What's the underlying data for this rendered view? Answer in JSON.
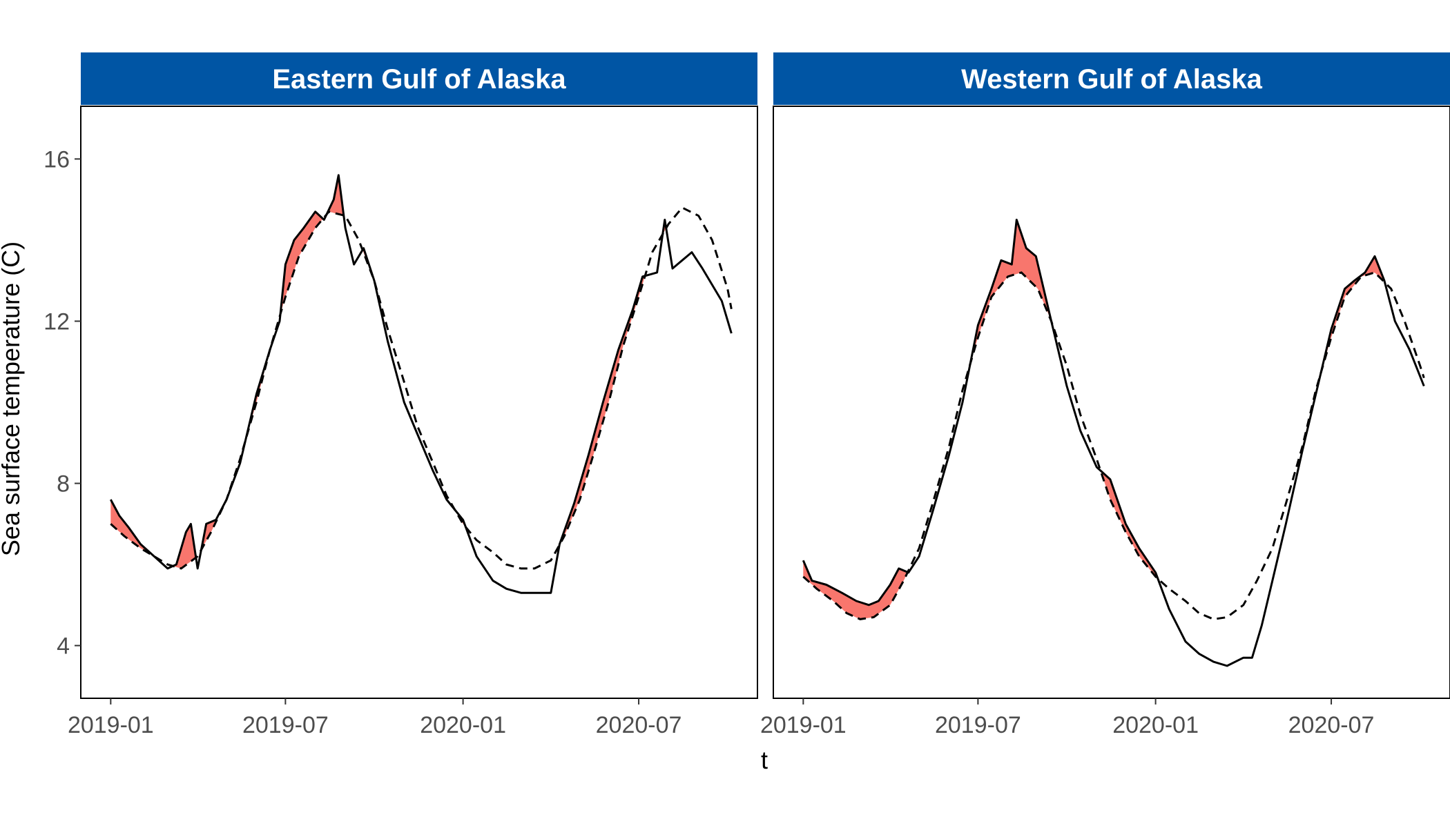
{
  "chart_data": [
    {
      "type": "line",
      "panel_title": "Eastern Gulf of Alaska",
      "xlabel": "t",
      "ylabel": "Sea surface temperature (C)",
      "xlim": [
        "2018-12-01",
        "2020-11-01"
      ],
      "ylim": [
        2.7,
        17.3
      ],
      "x_ticks": [
        "2019-01",
        "2019-07",
        "2020-01",
        "2020-07"
      ],
      "y_ticks": [
        4,
        8,
        12,
        16
      ],
      "fill": "positive anomaly shaded",
      "series": [
        {
          "role": "observed",
          "style": "solid",
          "points": [
            [
              "2019-01-01",
              7.6
            ],
            [
              "2019-01-10",
              7.2
            ],
            [
              "2019-01-20",
              6.9
            ],
            [
              "2019-02-01",
              6.5
            ],
            [
              "2019-02-15",
              6.2
            ],
            [
              "2019-03-01",
              5.9
            ],
            [
              "2019-03-10",
              6.0
            ],
            [
              "2019-03-20",
              6.8
            ],
            [
              "2019-03-25",
              7.0
            ],
            [
              "2019-04-01",
              5.9
            ],
            [
              "2019-04-10",
              7.0
            ],
            [
              "2019-04-20",
              7.1
            ],
            [
              "2019-05-01",
              7.6
            ],
            [
              "2019-05-15",
              8.5
            ],
            [
              "2019-06-01",
              10.2
            ],
            [
              "2019-06-15",
              11.3
            ],
            [
              "2019-06-25",
              12.0
            ],
            [
              "2019-07-01",
              13.4
            ],
            [
              "2019-07-10",
              14.0
            ],
            [
              "2019-07-20",
              14.3
            ],
            [
              "2019-08-01",
              14.7
            ],
            [
              "2019-08-10",
              14.5
            ],
            [
              "2019-08-20",
              15.0
            ],
            [
              "2019-08-25",
              15.6
            ],
            [
              "2019-09-01",
              14.3
            ],
            [
              "2019-09-10",
              13.4
            ],
            [
              "2019-09-20",
              13.8
            ],
            [
              "2019-10-01",
              13.0
            ],
            [
              "2019-10-15",
              11.5
            ],
            [
              "2019-11-01",
              10.0
            ],
            [
              "2019-11-15",
              9.2
            ],
            [
              "2019-12-01",
              8.3
            ],
            [
              "2019-12-15",
              7.6
            ],
            [
              "2020-01-01",
              7.1
            ],
            [
              "2020-01-15",
              6.2
            ],
            [
              "2020-02-01",
              5.6
            ],
            [
              "2020-02-15",
              5.4
            ],
            [
              "2020-03-01",
              5.3
            ],
            [
              "2020-03-15",
              5.3
            ],
            [
              "2020-04-01",
              5.3
            ],
            [
              "2020-04-10",
              6.5
            ],
            [
              "2020-04-25",
              7.5
            ],
            [
              "2020-05-10",
              8.7
            ],
            [
              "2020-05-25",
              10.0
            ],
            [
              "2020-06-10",
              11.3
            ],
            [
              "2020-06-25",
              12.3
            ],
            [
              "2020-07-05",
              13.1
            ],
            [
              "2020-07-20",
              13.2
            ],
            [
              "2020-07-28",
              14.5
            ],
            [
              "2020-08-05",
              13.3
            ],
            [
              "2020-08-15",
              13.5
            ],
            [
              "2020-08-25",
              13.7
            ],
            [
              "2020-09-05",
              13.3
            ],
            [
              "2020-09-15",
              12.9
            ],
            [
              "2020-09-25",
              12.5
            ],
            [
              "2020-10-05",
              11.7
            ]
          ]
        },
        {
          "role": "climatology",
          "style": "dashed",
          "points": [
            [
              "2019-01-01",
              7.0
            ],
            [
              "2019-01-15",
              6.7
            ],
            [
              "2019-02-01",
              6.4
            ],
            [
              "2019-02-15",
              6.2
            ],
            [
              "2019-03-01",
              6.0
            ],
            [
              "2019-03-15",
              5.9
            ],
            [
              "2019-04-01",
              6.2
            ],
            [
              "2019-04-15",
              6.8
            ],
            [
              "2019-05-01",
              7.6
            ],
            [
              "2019-05-15",
              8.6
            ],
            [
              "2019-06-01",
              10.0
            ],
            [
              "2019-06-15",
              11.3
            ],
            [
              "2019-07-01",
              12.6
            ],
            [
              "2019-07-15",
              13.6
            ],
            [
              "2019-08-01",
              14.3
            ],
            [
              "2019-08-15",
              14.7
            ],
            [
              "2019-09-01",
              14.6
            ],
            [
              "2019-09-15",
              14.0
            ],
            [
              "2019-10-01",
              13.0
            ],
            [
              "2019-10-15",
              11.8
            ],
            [
              "2019-11-01",
              10.5
            ],
            [
              "2019-11-15",
              9.4
            ],
            [
              "2019-12-01",
              8.5
            ],
            [
              "2019-12-15",
              7.7
            ],
            [
              "2020-01-01",
              7.0
            ],
            [
              "2020-01-15",
              6.6
            ],
            [
              "2020-02-01",
              6.3
            ],
            [
              "2020-02-15",
              6.0
            ],
            [
              "2020-03-01",
              5.9
            ],
            [
              "2020-03-15",
              5.9
            ],
            [
              "2020-04-01",
              6.1
            ],
            [
              "2020-04-15",
              6.7
            ],
            [
              "2020-05-01",
              7.6
            ],
            [
              "2020-05-15",
              8.7
            ],
            [
              "2020-06-01",
              10.1
            ],
            [
              "2020-06-15",
              11.4
            ],
            [
              "2020-07-01",
              12.6
            ],
            [
              "2020-07-15",
              13.7
            ],
            [
              "2020-08-01",
              14.4
            ],
            [
              "2020-08-15",
              14.8
            ],
            [
              "2020-09-01",
              14.6
            ],
            [
              "2020-09-15",
              14.0
            ],
            [
              "2020-10-01",
              12.8
            ],
            [
              "2020-10-05",
              12.3
            ]
          ]
        }
      ]
    },
    {
      "type": "line",
      "panel_title": "Western Gulf of Alaska",
      "xlabel": "t",
      "ylabel": "Sea surface temperature (C)",
      "xlim": [
        "2018-12-01",
        "2020-11-01"
      ],
      "ylim": [
        2.7,
        17.3
      ],
      "x_ticks": [
        "2019-01",
        "2019-07",
        "2020-01",
        "2020-07"
      ],
      "y_ticks": [
        4,
        8,
        12,
        16
      ],
      "fill": "positive anomaly shaded",
      "series": [
        {
          "role": "observed",
          "style": "solid",
          "points": [
            [
              "2019-01-01",
              6.1
            ],
            [
              "2019-01-10",
              5.6
            ],
            [
              "2019-01-25",
              5.5
            ],
            [
              "2019-02-10",
              5.3
            ],
            [
              "2019-02-25",
              5.1
            ],
            [
              "2019-03-10",
              5.0
            ],
            [
              "2019-03-20",
              5.1
            ],
            [
              "2019-04-01",
              5.5
            ],
            [
              "2019-04-10",
              5.9
            ],
            [
              "2019-04-20",
              5.8
            ],
            [
              "2019-05-01",
              6.2
            ],
            [
              "2019-05-15",
              7.3
            ],
            [
              "2019-06-01",
              8.7
            ],
            [
              "2019-06-15",
              10.0
            ],
            [
              "2019-07-01",
              11.9
            ],
            [
              "2019-07-15",
              12.8
            ],
            [
              "2019-07-25",
              13.5
            ],
            [
              "2019-08-05",
              13.4
            ],
            [
              "2019-08-10",
              14.5
            ],
            [
              "2019-08-20",
              13.8
            ],
            [
              "2019-08-30",
              13.6
            ],
            [
              "2019-09-15",
              12.0
            ],
            [
              "2019-10-01",
              10.4
            ],
            [
              "2019-10-15",
              9.3
            ],
            [
              "2019-11-01",
              8.4
            ],
            [
              "2019-11-15",
              8.1
            ],
            [
              "2019-12-01",
              7.0
            ],
            [
              "2019-12-15",
              6.4
            ],
            [
              "2020-01-01",
              5.8
            ],
            [
              "2020-01-15",
              4.9
            ],
            [
              "2020-02-01",
              4.1
            ],
            [
              "2020-02-15",
              3.8
            ],
            [
              "2020-03-01",
              3.6
            ],
            [
              "2020-03-15",
              3.5
            ],
            [
              "2020-04-01",
              3.7
            ],
            [
              "2020-04-10",
              3.7
            ],
            [
              "2020-04-20",
              4.5
            ],
            [
              "2020-05-01",
              5.6
            ],
            [
              "2020-05-15",
              7.0
            ],
            [
              "2020-06-01",
              8.8
            ],
            [
              "2020-06-15",
              10.2
            ],
            [
              "2020-07-01",
              11.8
            ],
            [
              "2020-07-15",
              12.8
            ],
            [
              "2020-07-25",
              13.0
            ],
            [
              "2020-08-05",
              13.2
            ],
            [
              "2020-08-15",
              13.6
            ],
            [
              "2020-08-25",
              13.0
            ],
            [
              "2020-09-05",
              12.0
            ],
            [
              "2020-09-20",
              11.3
            ],
            [
              "2020-10-05",
              10.4
            ]
          ]
        },
        {
          "role": "climatology",
          "style": "dashed",
          "points": [
            [
              "2019-01-01",
              5.7
            ],
            [
              "2019-01-15",
              5.4
            ],
            [
              "2019-02-01",
              5.1
            ],
            [
              "2019-02-15",
              4.8
            ],
            [
              "2019-03-01",
              4.65
            ],
            [
              "2019-03-15",
              4.7
            ],
            [
              "2019-04-01",
              5.0
            ],
            [
              "2019-04-15",
              5.6
            ],
            [
              "2019-05-01",
              6.4
            ],
            [
              "2019-05-15",
              7.5
            ],
            [
              "2019-06-01",
              8.9
            ],
            [
              "2019-06-15",
              10.3
            ],
            [
              "2019-07-01",
              11.6
            ],
            [
              "2019-07-15",
              12.6
            ],
            [
              "2019-08-01",
              13.1
            ],
            [
              "2019-08-15",
              13.2
            ],
            [
              "2019-09-01",
              12.8
            ],
            [
              "2019-09-15",
              12.0
            ],
            [
              "2019-10-01",
              10.9
            ],
            [
              "2019-10-15",
              9.7
            ],
            [
              "2019-11-01",
              8.6
            ],
            [
              "2019-11-15",
              7.6
            ],
            [
              "2019-12-01",
              6.8
            ],
            [
              "2019-12-15",
              6.2
            ],
            [
              "2020-01-01",
              5.7
            ],
            [
              "2020-01-15",
              5.4
            ],
            [
              "2020-02-01",
              5.1
            ],
            [
              "2020-02-15",
              4.8
            ],
            [
              "2020-03-01",
              4.65
            ],
            [
              "2020-03-15",
              4.7
            ],
            [
              "2020-04-01",
              5.0
            ],
            [
              "2020-04-15",
              5.6
            ],
            [
              "2020-05-01",
              6.4
            ],
            [
              "2020-05-15",
              7.5
            ],
            [
              "2020-06-01",
              8.9
            ],
            [
              "2020-06-15",
              10.3
            ],
            [
              "2020-07-01",
              11.6
            ],
            [
              "2020-07-15",
              12.6
            ],
            [
              "2020-08-01",
              13.1
            ],
            [
              "2020-08-15",
              13.2
            ],
            [
              "2020-09-01",
              12.8
            ],
            [
              "2020-09-15",
              12.0
            ],
            [
              "2020-10-01",
              10.9
            ],
            [
              "2020-10-05",
              10.6
            ]
          ]
        }
      ]
    }
  ],
  "colors": {
    "strip_background": "#0055A4",
    "strip_text": "#ffffff",
    "observed_line": "#000000",
    "climatology_line": "#000000",
    "anomaly_fill": "#F8766D",
    "axis_text": "#4d4d4d"
  }
}
